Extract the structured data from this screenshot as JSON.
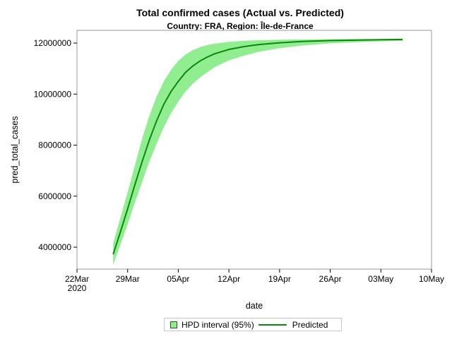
{
  "title": "Total confirmed cases (Actual vs. Predicted)",
  "subtitle": "Country: FRA, Region: Île-de-France",
  "legend": {
    "band_label": "HPD interval (95%)",
    "line_label": "Predicted"
  },
  "colors": {
    "band_fill": "#90ee90",
    "predicted_line": "#0a8a0a",
    "frame": "#999999"
  },
  "chart_data": {
    "type": "line",
    "title": "Total confirmed cases (Actual vs. Predicted)",
    "subtitle": "Country: FRA, Region: Île-de-France",
    "xlabel": "date",
    "ylabel": "pred_total_cases",
    "x_ticks": [
      "22Mar\n2020",
      "29Mar",
      "05Apr",
      "12Apr",
      "19Apr",
      "26Apr",
      "03May",
      "10May"
    ],
    "y_ticks": [
      4000000,
      6000000,
      8000000,
      10000000,
      12000000
    ],
    "ylim": [
      3300000,
      12500000
    ],
    "xlim": [
      "2020-03-22",
      "2020-05-10"
    ],
    "grid": false,
    "legend_position": "bottom",
    "x": [
      "2020-03-27",
      "2020-03-28",
      "2020-03-29",
      "2020-03-30",
      "2020-03-31",
      "2020-04-01",
      "2020-04-02",
      "2020-04-03",
      "2020-04-04",
      "2020-04-05",
      "2020-04-06",
      "2020-04-07",
      "2020-04-08",
      "2020-04-09",
      "2020-04-10",
      "2020-04-12",
      "2020-04-14",
      "2020-04-16",
      "2020-04-19",
      "2020-04-22",
      "2020-04-26",
      "2020-04-30",
      "2020-05-03",
      "2020-05-06"
    ],
    "series": [
      {
        "name": "Predicted",
        "kind": "line",
        "values": [
          3720000,
          4600000,
          5500000,
          6450000,
          7350000,
          8200000,
          8950000,
          9600000,
          10100000,
          10500000,
          10850000,
          11100000,
          11300000,
          11450000,
          11580000,
          11750000,
          11860000,
          11940000,
          12010000,
          12060000,
          12100000,
          12120000,
          12130000,
          12140000
        ]
      },
      {
        "name": "HPD interval (95%) upper",
        "kind": "band_upper",
        "values": [
          4150000,
          5150000,
          6150000,
          7200000,
          8250000,
          9150000,
          9900000,
          10500000,
          10950000,
          11300000,
          11550000,
          11720000,
          11840000,
          11920000,
          11980000,
          12050000,
          12090000,
          12110000,
          12130000,
          12140000,
          12150000,
          12160000,
          12160000,
          12170000
        ]
      },
      {
        "name": "HPD interval (95%) lower",
        "kind": "band_lower",
        "values": [
          3300000,
          4100000,
          4900000,
          5750000,
          6550000,
          7350000,
          8050000,
          8700000,
          9250000,
          9700000,
          10100000,
          10400000,
          10650000,
          10850000,
          11050000,
          11320000,
          11500000,
          11650000,
          11800000,
          11900000,
          11990000,
          12040000,
          12070000,
          12090000
        ]
      }
    ]
  }
}
